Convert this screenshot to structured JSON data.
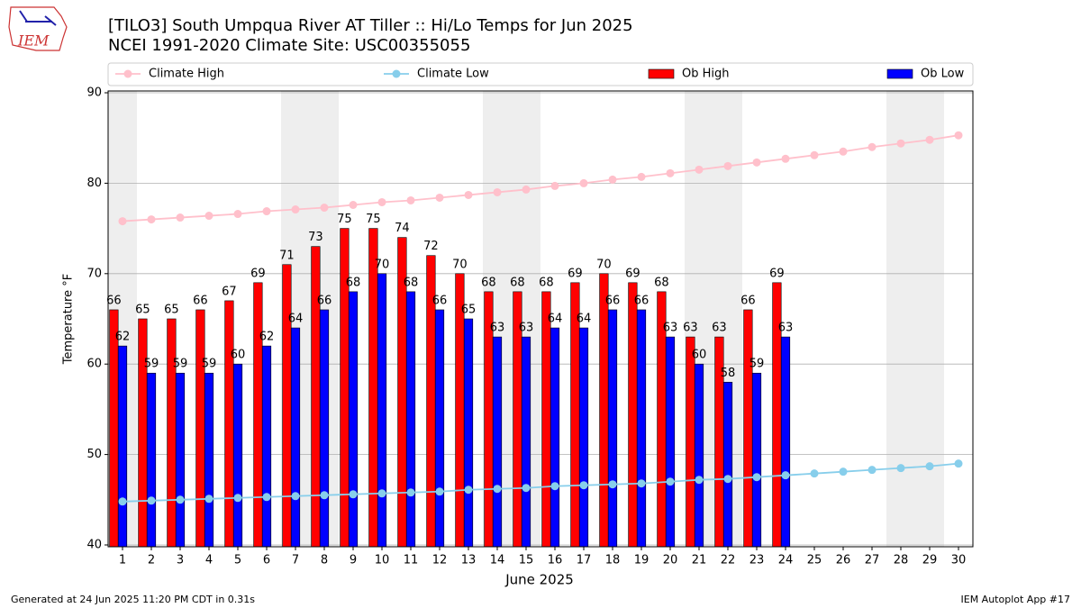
{
  "logo": "IEM",
  "footer_left": "Generated at 24 Jun 2025 11:20 PM CDT in 0.31s",
  "footer_right": "IEM Autoplot App #17",
  "chart_data": {
    "type": "bar_line",
    "title": "[TILO3] South Umpqua River  AT Tiller :: Hi/Lo Temps for Jun 2025",
    "subtitle": "NCEI 1991-2020 Climate Site: USC00355055",
    "x_label": "June 2025",
    "y_label": "Temperature °F",
    "x": [
      1,
      2,
      3,
      4,
      5,
      6,
      7,
      8,
      9,
      10,
      11,
      12,
      13,
      14,
      15,
      16,
      17,
      18,
      19,
      20,
      21,
      22,
      23,
      24,
      25,
      26,
      27,
      28,
      29,
      30
    ],
    "xlim": [
      0.5,
      30.5
    ],
    "ylim": [
      39.8,
      90.2
    ],
    "yticks": [
      40,
      50,
      60,
      70,
      80,
      90
    ],
    "grid": true,
    "legend": "top",
    "weekend_days": [
      1,
      7,
      8,
      14,
      15,
      21,
      22,
      28,
      29
    ],
    "series": [
      {
        "name": "Climate High",
        "kind": "line",
        "color": "#ffc0cb",
        "values": [
          75.8,
          76.0,
          76.2,
          76.4,
          76.6,
          76.9,
          77.1,
          77.3,
          77.6,
          77.9,
          78.1,
          78.4,
          78.7,
          79.0,
          79.3,
          79.7,
          80.0,
          80.4,
          80.7,
          81.1,
          81.5,
          81.9,
          82.3,
          82.7,
          83.1,
          83.5,
          84.0,
          84.4,
          84.8,
          85.3
        ]
      },
      {
        "name": "Climate Low",
        "kind": "line",
        "color": "#87ceeb",
        "values": [
          44.8,
          44.9,
          45.0,
          45.1,
          45.2,
          45.3,
          45.4,
          45.5,
          45.6,
          45.7,
          45.8,
          45.9,
          46.1,
          46.2,
          46.3,
          46.5,
          46.6,
          46.7,
          46.8,
          47.0,
          47.2,
          47.3,
          47.5,
          47.7,
          47.9,
          48.1,
          48.3,
          48.5,
          48.7,
          49.0
        ]
      },
      {
        "name": "Ob High",
        "kind": "bar",
        "color": "#ff0000",
        "values": [
          66,
          65,
          65,
          66,
          67,
          69,
          71,
          73,
          75,
          75,
          74,
          72,
          70,
          68,
          68,
          68,
          69,
          70,
          69,
          68,
          63,
          63,
          66,
          69,
          null,
          null,
          null,
          null,
          null,
          null
        ]
      },
      {
        "name": "Ob Low",
        "kind": "bar",
        "color": "#0000ff",
        "values": [
          62,
          59,
          59,
          59,
          60,
          62,
          64,
          66,
          68,
          70,
          68,
          66,
          65,
          63,
          63,
          64,
          64,
          66,
          66,
          63,
          60,
          58,
          59,
          63,
          null,
          null,
          null,
          null,
          null,
          null
        ]
      }
    ]
  }
}
